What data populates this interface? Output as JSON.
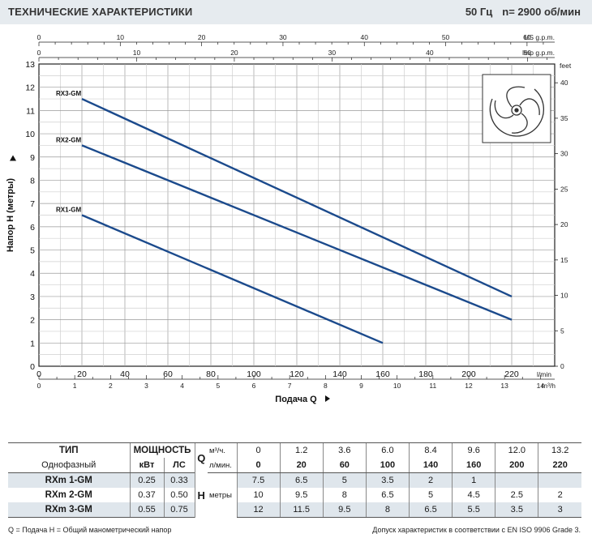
{
  "header": {
    "title": "ТЕХНИЧЕСКИЕ ХАРАКТЕРИСТИКИ",
    "frequency": "50 Гц",
    "speed": "n= 2900 об/мин"
  },
  "chart_data": {
    "type": "line",
    "xlabel": "Подача Q",
    "ylabel": "Напор H (метры)",
    "xlim": [
      0,
      240
    ],
    "ylim": [
      0,
      13
    ],
    "grid": true,
    "x_unit": "l/min",
    "x_ticks": [
      "0",
      "20",
      "40",
      "60",
      "80",
      "100",
      "120",
      "140",
      "160",
      "180",
      "200",
      "220"
    ],
    "y_ticks": [
      "0",
      "1",
      "2",
      "3",
      "4",
      "5",
      "6",
      "7",
      "8",
      "9",
      "10",
      "11",
      "12",
      "13"
    ],
    "secondary_axes": {
      "us_gpm": {
        "unit": "US g.p.m.",
        "ticks": [
          "0",
          "10",
          "20",
          "30",
          "40",
          "50",
          "60"
        ]
      },
      "imp_gpm": {
        "unit": "Imp g.p.m.",
        "ticks": [
          "0",
          "10",
          "20",
          "30",
          "40",
          "50"
        ]
      },
      "m3h": {
        "unit": "m³/h",
        "ticks": [
          "0",
          "1",
          "2",
          "3",
          "4",
          "5",
          "6",
          "7",
          "8",
          "9",
          "10",
          "11",
          "12",
          "13",
          "14"
        ]
      },
      "feet": {
        "unit": "feet",
        "ticks": [
          "0",
          "5",
          "10",
          "15",
          "20",
          "25",
          "30",
          "35",
          "40"
        ]
      }
    },
    "series": [
      {
        "name": "RX1-GM",
        "x": [
          20,
          160
        ],
        "y": [
          6.5,
          1
        ]
      },
      {
        "name": "RX2-GM",
        "x": [
          20,
          220
        ],
        "y": [
          9.5,
          2
        ]
      },
      {
        "name": "RX3-GM",
        "x": [
          20,
          220
        ],
        "y": [
          11.5,
          3
        ]
      }
    ],
    "line_color": "#1b4a8c"
  },
  "table": {
    "col_type": "ТИП",
    "col_power": "МОЩНОСТЬ",
    "phase": "Однофазный",
    "kw": "кВт",
    "hp": "ЛС",
    "q_symbol": "Q",
    "h_symbol": "H",
    "unit_m3h": "м³/ч.",
    "unit_lmin": "л/мин.",
    "unit_m": "метры",
    "q_m3h": [
      "0",
      "1.2",
      "3.6",
      "6.0",
      "8.4",
      "9.6",
      "12.0",
      "13.2"
    ],
    "q_lmin": [
      "0",
      "20",
      "60",
      "100",
      "140",
      "160",
      "200",
      "220"
    ],
    "rows": [
      {
        "model": "RXm 1-GM",
        "kw": "0.25",
        "hp": "0.33",
        "h": [
          "7.5",
          "6.5",
          "5",
          "3.5",
          "2",
          "1",
          "",
          ""
        ]
      },
      {
        "model": "RXm 2-GM",
        "kw": "0.37",
        "hp": "0.50",
        "h": [
          "10",
          "9.5",
          "8",
          "6.5",
          "5",
          "4.5",
          "2.5",
          "2"
        ]
      },
      {
        "model": "RXm 3-GM",
        "kw": "0.55",
        "hp": "0.75",
        "h": [
          "12",
          "11.5",
          "9.5",
          "8",
          "6.5",
          "5.5",
          "3.5",
          "3"
        ]
      }
    ]
  },
  "footer": {
    "legend": "Q = Подача   H = Общий манометрический напор",
    "tolerance": "Допуск характеристик в соответствии с EN ISO 9906 Grade 3."
  }
}
